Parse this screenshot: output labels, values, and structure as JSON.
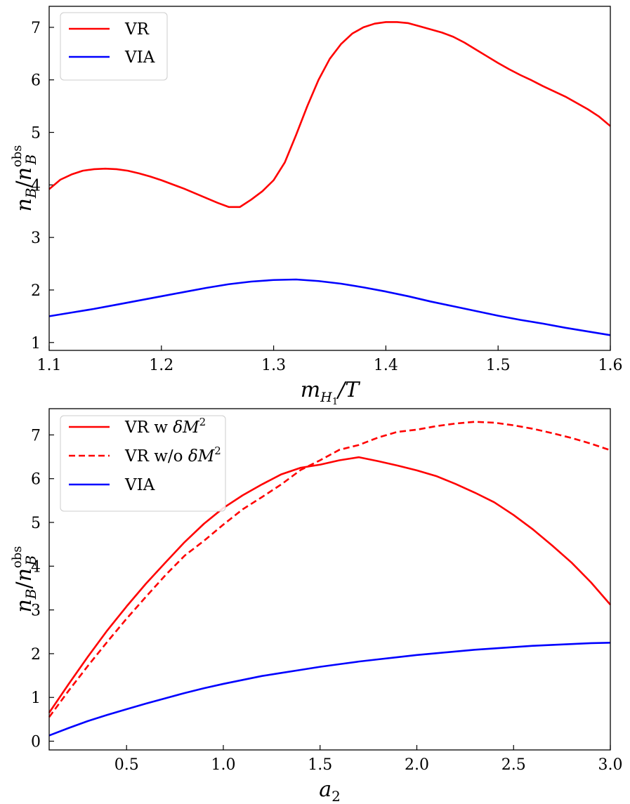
{
  "chart_data": [
    {
      "type": "line",
      "title": "",
      "xlabel": "m_{H_1}/T",
      "xlabel_parts": {
        "base": "m",
        "sub": "H",
        "subsub": "1",
        "rest": "/T"
      },
      "ylabel": "n_B/n_B^obs",
      "ylabel_parts": {
        "num": "n",
        "num_sub": "B",
        "slash": "/",
        "den": "n",
        "den_sub": "B",
        "den_sup": "obs"
      },
      "xlim": [
        1.1,
        1.6
      ],
      "ylim": [
        0.85,
        7.4
      ],
      "xticks": [
        1.1,
        1.2,
        1.3,
        1.4,
        1.5,
        1.6
      ],
      "xtick_labels": [
        "1.1",
        "1.2",
        "1.3",
        "1.4",
        "1.5",
        "1.6"
      ],
      "yticks": [
        1,
        2,
        3,
        4,
        5,
        6,
        7
      ],
      "ytick_labels": [
        "1",
        "2",
        "3",
        "4",
        "5",
        "6",
        "7"
      ],
      "legend_position": "top-left",
      "series": [
        {
          "name": "VR",
          "color": "#ff0000",
          "dash": "solid",
          "x": [
            1.1,
            1.11,
            1.12,
            1.13,
            1.14,
            1.15,
            1.16,
            1.17,
            1.18,
            1.19,
            1.2,
            1.21,
            1.22,
            1.23,
            1.24,
            1.25,
            1.26,
            1.27,
            1.28,
            1.29,
            1.3,
            1.31,
            1.32,
            1.33,
            1.34,
            1.35,
            1.36,
            1.37,
            1.38,
            1.39,
            1.4,
            1.41,
            1.42,
            1.43,
            1.44,
            1.45,
            1.46,
            1.47,
            1.48,
            1.49,
            1.5,
            1.51,
            1.52,
            1.53,
            1.54,
            1.55,
            1.56,
            1.57,
            1.58,
            1.59,
            1.6
          ],
          "y": [
            3.92,
            4.1,
            4.2,
            4.27,
            4.3,
            4.31,
            4.3,
            4.27,
            4.22,
            4.16,
            4.09,
            4.01,
            3.93,
            3.84,
            3.75,
            3.66,
            3.58,
            3.58,
            3.72,
            3.88,
            4.09,
            4.43,
            4.95,
            5.5,
            6.0,
            6.4,
            6.68,
            6.88,
            7.0,
            7.07,
            7.1,
            7.1,
            7.08,
            7.02,
            6.96,
            6.9,
            6.82,
            6.71,
            6.58,
            6.45,
            6.32,
            6.2,
            6.09,
            5.99,
            5.88,
            5.78,
            5.68,
            5.56,
            5.44,
            5.3,
            5.12
          ]
        },
        {
          "name": "VIA",
          "color": "#0000ff",
          "dash": "solid",
          "x": [
            1.1,
            1.12,
            1.14,
            1.16,
            1.18,
            1.2,
            1.22,
            1.24,
            1.26,
            1.28,
            1.3,
            1.32,
            1.34,
            1.36,
            1.38,
            1.4,
            1.42,
            1.44,
            1.46,
            1.48,
            1.5,
            1.52,
            1.54,
            1.56,
            1.58,
            1.6
          ],
          "y": [
            1.5,
            1.57,
            1.64,
            1.72,
            1.8,
            1.88,
            1.96,
            2.04,
            2.11,
            2.16,
            2.19,
            2.2,
            2.17,
            2.12,
            2.05,
            1.97,
            1.88,
            1.78,
            1.69,
            1.6,
            1.51,
            1.43,
            1.36,
            1.28,
            1.21,
            1.14
          ]
        }
      ]
    },
    {
      "type": "line",
      "title": "",
      "xlabel": "a_2",
      "xlabel_parts": {
        "base": "a",
        "sub": "2"
      },
      "ylabel": "n_B/n_B^obs",
      "ylabel_parts": {
        "num": "n",
        "num_sub": "B",
        "slash": "/",
        "den": "n",
        "den_sub": "B",
        "den_sup": "obs"
      },
      "xlim": [
        0.1,
        3.0
      ],
      "ylim": [
        -0.2,
        7.6
      ],
      "xticks": [
        0.5,
        1.0,
        1.5,
        2.0,
        2.5,
        3.0
      ],
      "xtick_labels": [
        "0.5",
        "1.0",
        "1.5",
        "2.0",
        "2.5",
        "3.0"
      ],
      "yticks": [
        0,
        1,
        2,
        3,
        4,
        5,
        6,
        7
      ],
      "ytick_labels": [
        "0",
        "1",
        "2",
        "3",
        "4",
        "5",
        "6",
        "7"
      ],
      "legend_position": "top-left",
      "series": [
        {
          "name": "VR w δM²",
          "legend_parts": {
            "text": "VR w ",
            "sym": "δM",
            "sup": "2"
          },
          "color": "#ff0000",
          "dash": "solid",
          "x": [
            0.1,
            0.2,
            0.3,
            0.4,
            0.5,
            0.6,
            0.7,
            0.8,
            0.9,
            1.0,
            1.1,
            1.2,
            1.3,
            1.4,
            1.5,
            1.6,
            1.7,
            1.8,
            1.9,
            2.0,
            2.1,
            2.2,
            2.3,
            2.4,
            2.5,
            2.6,
            2.7,
            2.8,
            2.9,
            3.0
          ],
          "y": [
            0.65,
            1.3,
            1.93,
            2.53,
            3.08,
            3.6,
            4.08,
            4.55,
            4.97,
            5.33,
            5.62,
            5.87,
            6.1,
            6.25,
            6.32,
            6.42,
            6.49,
            6.4,
            6.3,
            6.19,
            6.06,
            5.88,
            5.68,
            5.46,
            5.17,
            4.84,
            4.47,
            4.08,
            3.63,
            3.12
          ]
        },
        {
          "name": "VR w/o δM²",
          "legend_parts": {
            "text": "VR w/o ",
            "sym": "δM",
            "sup": "2"
          },
          "color": "#ff0000",
          "dash": "dashed",
          "x": [
            0.1,
            0.2,
            0.3,
            0.4,
            0.5,
            0.6,
            0.7,
            0.8,
            0.9,
            1.0,
            1.1,
            1.2,
            1.3,
            1.4,
            1.5,
            1.6,
            1.7,
            1.8,
            1.9,
            2.0,
            2.1,
            2.2,
            2.3,
            2.4,
            2.5,
            2.6,
            2.7,
            2.8,
            2.9,
            3.0
          ],
          "y": [
            0.55,
            1.15,
            1.72,
            2.27,
            2.8,
            3.3,
            3.79,
            4.24,
            4.58,
            4.95,
            5.3,
            5.58,
            5.87,
            6.2,
            6.42,
            6.66,
            6.77,
            6.94,
            7.07,
            7.12,
            7.2,
            7.26,
            7.3,
            7.28,
            7.22,
            7.14,
            7.04,
            6.93,
            6.8,
            6.65
          ]
        },
        {
          "name": "VIA",
          "color": "#0000ff",
          "dash": "solid",
          "x": [
            0.1,
            0.2,
            0.3,
            0.4,
            0.5,
            0.6,
            0.7,
            0.8,
            0.9,
            1.0,
            1.1,
            1.2,
            1.3,
            1.4,
            1.5,
            1.6,
            1.7,
            1.8,
            1.9,
            2.0,
            2.1,
            2.2,
            2.3,
            2.4,
            2.5,
            2.6,
            2.7,
            2.8,
            2.9,
            3.0
          ],
          "y": [
            0.13,
            0.3,
            0.46,
            0.6,
            0.73,
            0.86,
            0.98,
            1.1,
            1.21,
            1.31,
            1.4,
            1.49,
            1.56,
            1.63,
            1.7,
            1.76,
            1.82,
            1.87,
            1.92,
            1.97,
            2.01,
            2.05,
            2.09,
            2.12,
            2.15,
            2.18,
            2.2,
            2.22,
            2.24,
            2.25
          ]
        }
      ]
    }
  ]
}
